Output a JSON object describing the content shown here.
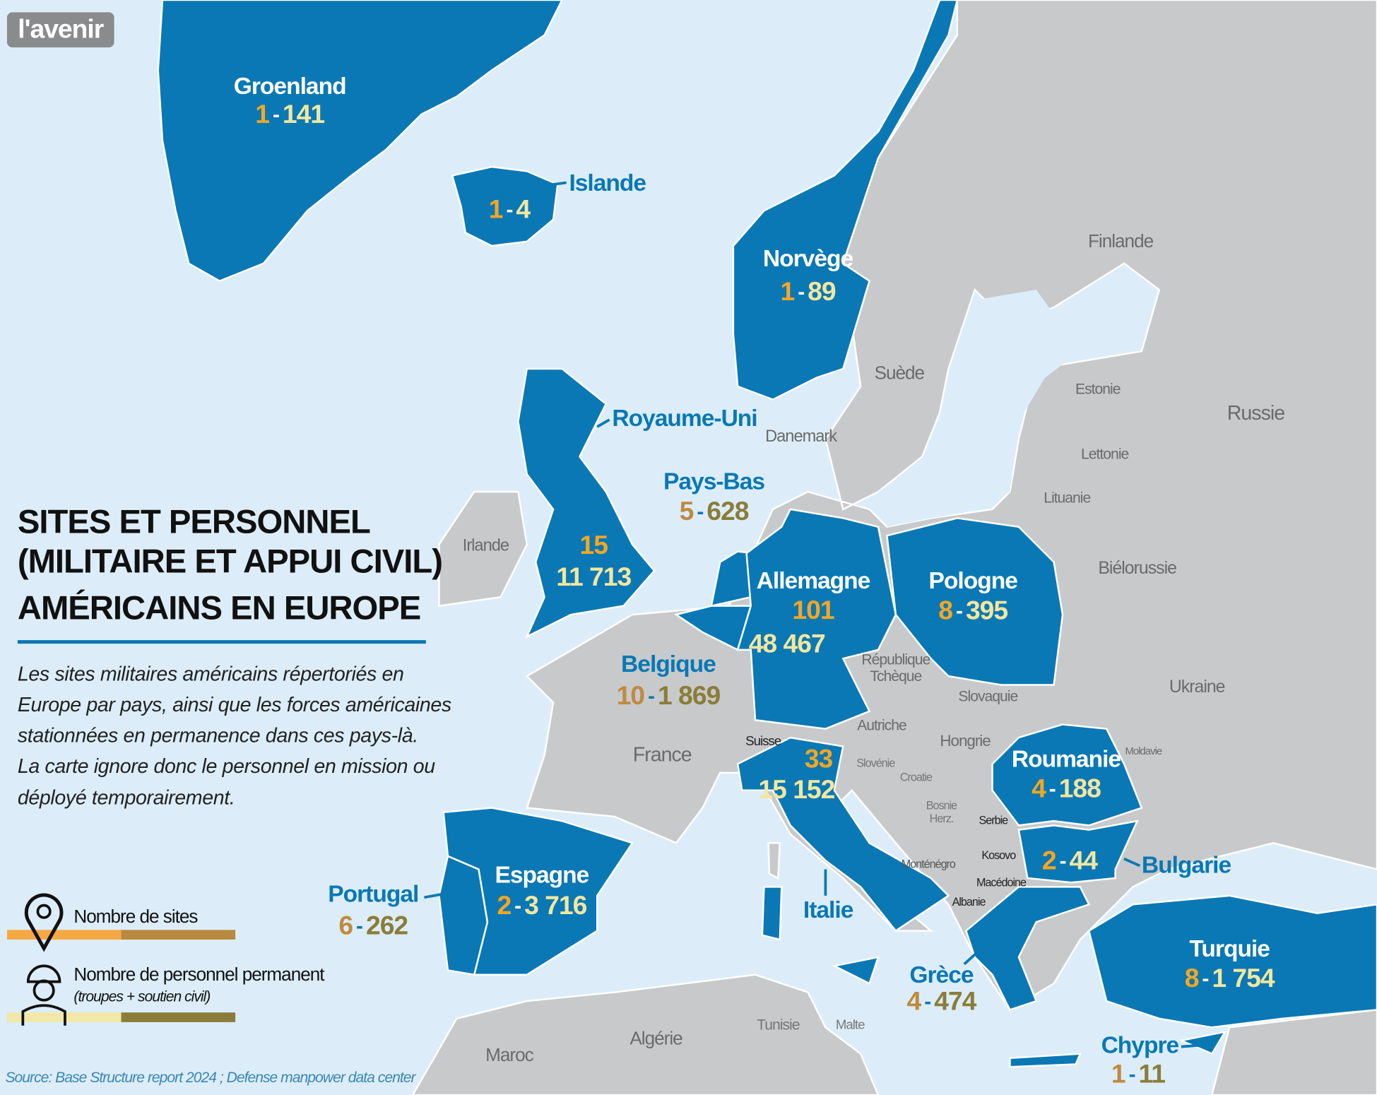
{
  "logo": "l'avenir",
  "title": [
    "SITES ET PERSONNEL",
    "(MILITAIRE ET APPUI CIVIL)",
    "AMÉRICAINS EN EUROPE"
  ],
  "description": [
    "Les sites militaires américains répertoriés en",
    "Europe par pays, ainsi que les forces américaines",
    "stationnées en permanence dans ces pays-là.",
    "La carte ignore donc le personnel en mission ou",
    "déployé temporairement."
  ],
  "legend": {
    "sites": "Nombre de sites",
    "personnel": "Nombre de personnel permanent",
    "personnel_note": "(troupes + soutien civil)"
  },
  "source": "Source: Base Structure report 2024 ; Defense manpower data center",
  "separator": "-",
  "countries": [
    {
      "name": "Groenland",
      "sites": "1",
      "personnel": "141"
    },
    {
      "name": "Islande",
      "sites": "1",
      "personnel": "4"
    },
    {
      "name": "Norvège",
      "sites": "1",
      "personnel": "89"
    },
    {
      "name": "Royaume-Uni",
      "sites": "15",
      "personnel": "11 713"
    },
    {
      "name": "Pays-Bas",
      "sites": "5",
      "personnel": "628"
    },
    {
      "name": "Allemagne",
      "sites": "101",
      "personnel": "48 467"
    },
    {
      "name": "Pologne",
      "sites": "8",
      "personnel": "395"
    },
    {
      "name": "Belgique",
      "sites": "10",
      "personnel": "1 869"
    },
    {
      "name": "Italie",
      "sites": "33",
      "personnel": "15 152"
    },
    {
      "name": "Roumanie",
      "sites": "4",
      "personnel": "188"
    },
    {
      "name": "Bulgarie",
      "sites": "2",
      "personnel": "44"
    },
    {
      "name": "Espagne",
      "sites": "2",
      "personnel": "3 716"
    },
    {
      "name": "Portugal",
      "sites": "6",
      "personnel": "262"
    },
    {
      "name": "Grèce",
      "sites": "4",
      "personnel": "474"
    },
    {
      "name": "Turquie",
      "sites": "8",
      "personnel": "1 754"
    },
    {
      "name": "Chypre",
      "sites": "1",
      "personnel": "11"
    }
  ],
  "other_countries": [
    [
      "Finlande"
    ],
    [
      "Suède"
    ],
    [
      "Estonie"
    ],
    [
      "Russie"
    ],
    [
      "Lettonie"
    ],
    [
      "Lituanie"
    ],
    [
      "Danemark"
    ],
    [
      "Irlande"
    ],
    [
      "Biélorussie"
    ],
    [
      "République",
      "Tchèque"
    ],
    [
      "Ukraine"
    ],
    [
      "Slovaquie"
    ],
    [
      "Autriche"
    ],
    [
      "Hongrie"
    ],
    [
      "Moldavie"
    ],
    [
      "Suisse"
    ],
    [
      "Slovénie"
    ],
    [
      "Croatie"
    ],
    [
      "France"
    ],
    [
      "Bosnie",
      "Herz."
    ],
    [
      "Serbie"
    ],
    [
      "Monténégro"
    ],
    [
      "Kosovo"
    ],
    [
      "Macédoine"
    ],
    [
      "Albanie"
    ],
    [
      "Tunisie"
    ],
    [
      "Malte"
    ],
    [
      "Algérie"
    ],
    [
      "Maroc"
    ]
  ]
}
